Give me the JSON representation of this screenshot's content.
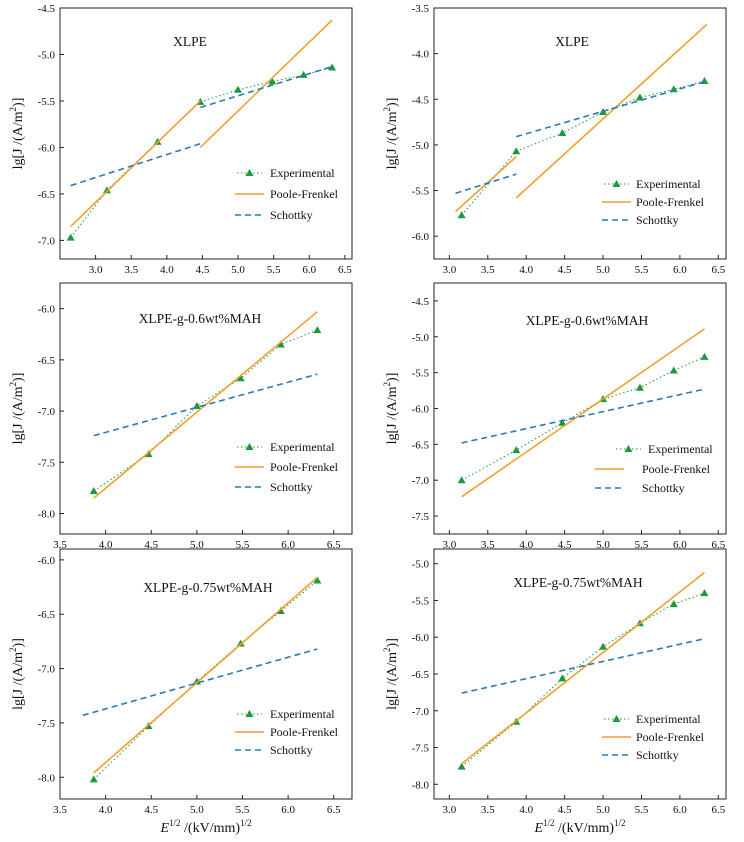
{
  "figure": {
    "xlabel": {
      "main": "E",
      "exp": "1/2",
      "unit": " /(kV/mm)",
      "unit_exp": "1/2"
    },
    "ylabel": {
      "pre": "lg[J /(A/m",
      "exp": "2",
      "post": ")]"
    },
    "legend": {
      "experimental": "Experimental",
      "pf": "Poole-Frenkel",
      "schottky": "Schottky"
    },
    "colors": {
      "experimental": "#1a9a3c",
      "pf": "#f0a030",
      "schottky": "#2a7ab8",
      "axis": "#222222"
    }
  },
  "chart_data": [
    {
      "type": "line",
      "title": "XLPE",
      "xlim": [
        2.5,
        6.6
      ],
      "ylim": [
        -7.2,
        -4.5
      ],
      "xticks": [
        "3.0",
        "3.5",
        "4.0",
        "4.5",
        "5.0",
        "5.5",
        "6.0",
        "6.5"
      ],
      "yticks": [
        "-7.0",
        "-6.5",
        "-6.0",
        "-5.5",
        "-5.0",
        "-4.5"
      ],
      "series": [
        {
          "name": "Experimental",
          "x": [
            2.65,
            3.16,
            3.87,
            4.47,
            5.0,
            5.48,
            5.92,
            6.32
          ],
          "y": [
            -6.97,
            -6.46,
            -5.94,
            -5.51,
            -5.38,
            -5.29,
            -5.22,
            -5.14
          ]
        },
        {
          "name": "Poole-Frenkel",
          "segments": [
            {
              "x": [
                2.65,
                4.47
              ],
              "y": [
                -6.85,
                -5.5
              ]
            },
            {
              "x": [
                4.47,
                6.32
              ],
              "y": [
                -6.0,
                -4.63
              ]
            }
          ]
        },
        {
          "name": "Schottky",
          "segments": [
            {
              "x": [
                2.65,
                4.47
              ],
              "y": [
                -6.41,
                -5.96
              ]
            },
            {
              "x": [
                4.47,
                6.32
              ],
              "y": [
                -5.57,
                -5.13
              ]
            }
          ]
        }
      ]
    },
    {
      "type": "line",
      "title": "XLPE",
      "xlim": [
        2.8,
        6.6
      ],
      "ylim": [
        -6.25,
        -3.5
      ],
      "xticks": [
        "3.0",
        "3.5",
        "4.0",
        "4.5",
        "5.0",
        "5.5",
        "6.0",
        "6.5"
      ],
      "yticks": [
        "-6.0",
        "-5.5",
        "-5.0",
        "-4.5",
        "-4.0",
        "-3.5"
      ],
      "series": [
        {
          "name": "Experimental",
          "x": [
            3.16,
            3.87,
            4.47,
            5.0,
            5.48,
            5.92,
            6.32
          ],
          "y": [
            -5.77,
            -5.07,
            -4.87,
            -4.64,
            -4.48,
            -4.39,
            -4.3
          ]
        },
        {
          "name": "Poole-Frenkel",
          "segments": [
            {
              "x": [
                3.08,
                3.87
              ],
              "y": [
                -5.73,
                -5.13
              ]
            },
            {
              "x": [
                3.87,
                6.35
              ],
              "y": [
                -5.58,
                -3.68
              ]
            }
          ]
        },
        {
          "name": "Schottky",
          "segments": [
            {
              "x": [
                3.08,
                3.87
              ],
              "y": [
                -5.53,
                -5.32
              ]
            },
            {
              "x": [
                3.87,
                6.35
              ],
              "y": [
                -4.91,
                -4.3
              ]
            }
          ]
        }
      ]
    },
    {
      "type": "line",
      "title": "XLPE-g-0.6wt%MAH",
      "xlim": [
        3.5,
        6.7
      ],
      "ylim": [
        -8.2,
        -5.75
      ],
      "xticks": [
        "3.5",
        "4.0",
        "4.5",
        "5.0",
        "5.5",
        "6.0",
        "6.5"
      ],
      "yticks": [
        "-8.0",
        "-7.5",
        "-7.0",
        "-6.5",
        "-6.0"
      ],
      "series": [
        {
          "name": "Experimental",
          "x": [
            3.87,
            4.47,
            5.0,
            5.48,
            5.92,
            6.32
          ],
          "y": [
            -7.78,
            -7.42,
            -6.95,
            -6.68,
            -6.35,
            -6.21
          ]
        },
        {
          "name": "Poole-Frenkel",
          "segments": [
            {
              "x": [
                3.87,
                6.32
              ],
              "y": [
                -7.85,
                -6.03
              ]
            }
          ]
        },
        {
          "name": "Schottky",
          "segments": [
            {
              "x": [
                3.87,
                6.32
              ],
              "y": [
                -7.24,
                -6.64
              ]
            }
          ]
        }
      ]
    },
    {
      "type": "line",
      "title": "XLPE-g-0.6wt%MAH",
      "xlim": [
        2.8,
        6.6
      ],
      "ylim": [
        -7.75,
        -4.25
      ],
      "xticks": [
        "3.0",
        "3.5",
        "4.0",
        "4.5",
        "5.0",
        "5.5",
        "6.0",
        "6.5"
      ],
      "yticks": [
        "-7.5",
        "-7.0",
        "-6.5",
        "-6.0",
        "-5.5",
        "-5.0",
        "-4.5"
      ],
      "series": [
        {
          "name": "Experimental",
          "x": [
            3.16,
            3.87,
            4.47,
            5.0,
            5.48,
            5.92,
            6.32
          ],
          "y": [
            -7.0,
            -6.58,
            -6.2,
            -5.87,
            -5.71,
            -5.47,
            -5.28
          ]
        },
        {
          "name": "Poole-Frenkel",
          "segments": [
            {
              "x": [
                3.16,
                6.32
              ],
              "y": [
                -7.23,
                -4.89
              ]
            }
          ]
        },
        {
          "name": "Schottky",
          "segments": [
            {
              "x": [
                3.16,
                6.32
              ],
              "y": [
                -6.48,
                -5.73
              ]
            }
          ]
        }
      ]
    },
    {
      "type": "line",
      "title": "XLPE-g-0.75wt%MAH",
      "xlim": [
        3.5,
        6.7
      ],
      "ylim": [
        -8.2,
        -5.9
      ],
      "xticks": [
        "3.5",
        "4.0",
        "4.5",
        "5.0",
        "5.5",
        "6.0",
        "6.5"
      ],
      "yticks": [
        "-8.0",
        "-7.5",
        "-7.0",
        "-6.5",
        "-6.0"
      ],
      "series": [
        {
          "name": "Experimental",
          "x": [
            3.87,
            4.47,
            5.0,
            5.48,
            5.92,
            6.32
          ],
          "y": [
            -8.02,
            -7.53,
            -7.12,
            -6.77,
            -6.47,
            -6.19
          ]
        },
        {
          "name": "Poole-Frenkel",
          "segments": [
            {
              "x": [
                3.87,
                6.32
              ],
              "y": [
                -7.96,
                -6.16
              ]
            }
          ]
        },
        {
          "name": "Schottky",
          "segments": [
            {
              "x": [
                3.75,
                6.32
              ],
              "y": [
                -7.43,
                -6.82
              ]
            }
          ]
        }
      ]
    },
    {
      "type": "line",
      "title": "XLPE-g-0.75wt%MAH",
      "xlim": [
        2.8,
        6.6
      ],
      "ylim": [
        -8.2,
        -4.8
      ],
      "xticks": [
        "3.0",
        "3.5",
        "4.0",
        "4.5",
        "5.0",
        "5.5",
        "6.0",
        "6.5"
      ],
      "yticks": [
        "-8.0",
        "-7.5",
        "-7.0",
        "-6.5",
        "-6.0",
        "-5.5",
        "-5.0"
      ],
      "series": [
        {
          "name": "Experimental",
          "x": [
            3.16,
            3.87,
            4.47,
            5.0,
            5.48,
            5.92,
            6.32
          ],
          "y": [
            -7.76,
            -7.15,
            -6.56,
            -6.13,
            -5.81,
            -5.55,
            -5.4
          ]
        },
        {
          "name": "Poole-Frenkel",
          "segments": [
            {
              "x": [
                3.16,
                6.32
              ],
              "y": [
                -7.72,
                -5.12
              ]
            }
          ]
        },
        {
          "name": "Schottky",
          "segments": [
            {
              "x": [
                3.16,
                6.32
              ],
              "y": [
                -6.76,
                -6.02
              ]
            }
          ]
        }
      ]
    }
  ]
}
